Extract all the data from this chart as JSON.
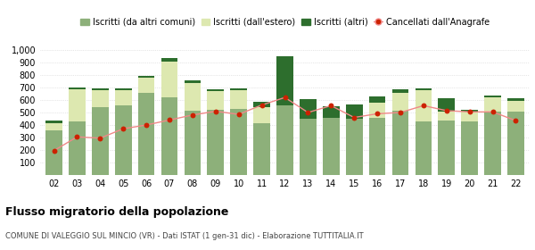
{
  "years": [
    "02",
    "03",
    "04",
    "05",
    "06",
    "07",
    "08",
    "09",
    "10",
    "11",
    "12",
    "13",
    "14",
    "15",
    "16",
    "17",
    "18",
    "19",
    "20",
    "21",
    "22"
  ],
  "iscritti_comuni": [
    360,
    430,
    545,
    560,
    655,
    620,
    515,
    525,
    530,
    415,
    555,
    450,
    455,
    450,
    455,
    515,
    430,
    435,
    430,
    510,
    505
  ],
  "iscritti_estero": [
    55,
    255,
    130,
    115,
    120,
    285,
    220,
    145,
    145,
    130,
    0,
    0,
    0,
    0,
    120,
    140,
    245,
    75,
    75,
    110,
    90
  ],
  "iscritti_altri": [
    20,
    15,
    20,
    15,
    20,
    30,
    20,
    15,
    15,
    40,
    395,
    155,
    95,
    115,
    50,
    30,
    15,
    105,
    15,
    15,
    20
  ],
  "cancellati": [
    195,
    305,
    295,
    370,
    400,
    440,
    480,
    510,
    485,
    560,
    620,
    500,
    555,
    460,
    490,
    500,
    555,
    515,
    505,
    505,
    435
  ],
  "color_comuni": "#8db07a",
  "color_estero": "#dde8b0",
  "color_altri": "#2d6e2d",
  "color_cancellati": "#cc2200",
  "color_line_cancellati": "#f08888",
  "title": "Flusso migratorio della popolazione",
  "subtitle": "COMUNE DI VALEGGIO SUL MINCIO (VR) - Dati ISTAT (1 gen-31 dic) - Elaborazione TUTTITALIA.IT",
  "legend_labels": [
    "Iscritti (da altri comuni)",
    "Iscritti (dall'estero)",
    "Iscritti (altri)",
    "Cancellati dall'Anagrafe"
  ],
  "ylim": [
    0,
    1000
  ],
  "yticks": [
    0,
    100,
    200,
    300,
    400,
    500,
    600,
    700,
    800,
    900,
    1000
  ],
  "ytick_labels": [
    "",
    "100",
    "200",
    "300",
    "400",
    "500",
    "600",
    "700",
    "800",
    "900",
    "1,000"
  ],
  "background_color": "#ffffff",
  "grid_color": "#d0d0d0"
}
